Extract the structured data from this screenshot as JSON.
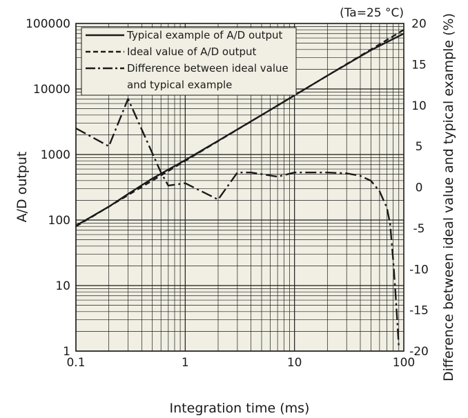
{
  "chart_data": {
    "type": "line",
    "title": "",
    "note": "(Ta=25 °C)",
    "xlabel": "Integration time (ms)",
    "ylabel": "A/D output",
    "y2label": "Difference between ideal value and typical example (%)",
    "x_scale": "log",
    "y_scale": "log",
    "xlim": [
      0.1,
      100
    ],
    "ylim": [
      1,
      100000
    ],
    "y2lim": [
      -20,
      20
    ],
    "grid": true,
    "background": "#f1efe3",
    "legend_position": "top-left",
    "x_tick_labels": [
      "0.1",
      "1",
      "10",
      "100"
    ],
    "y_tick_labels": [
      "1",
      "10",
      "100",
      "1000",
      "10000",
      "100000"
    ],
    "y2_tick_labels": [
      "-20",
      "-15",
      "-10",
      "-5",
      "0",
      "5",
      "10",
      "15",
      "20"
    ],
    "series": [
      {
        "name": "Typical example of A/D output",
        "axis": "left",
        "style": "solid",
        "x": [
          0.1,
          0.2,
          0.3,
          0.5,
          1,
          2,
          5,
          10,
          20,
          50,
          100
        ],
        "values": [
          82,
          160,
          250,
          430,
          820,
          1620,
          4000,
          8000,
          16000,
          39000,
          70000
        ]
      },
      {
        "name": "Ideal value of A/D output",
        "axis": "left",
        "style": "dashed",
        "x": [
          0.1,
          0.2,
          0.3,
          0.5,
          1,
          2,
          5,
          10,
          20,
          50,
          100
        ],
        "values": [
          80,
          160,
          240,
          400,
          800,
          1600,
          4000,
          8000,
          16000,
          40000,
          80000
        ]
      },
      {
        "name": "Difference between ideal value and typical example",
        "axis": "right",
        "style": "dashdot",
        "x": [
          0.1,
          0.2,
          0.3,
          0.6,
          0.7,
          1,
          2,
          3,
          4,
          7,
          10,
          20,
          30,
          40,
          50,
          60,
          70,
          75,
          80,
          85,
          90
        ],
        "values": [
          7.2,
          5.0,
          10.8,
          1.8,
          0.2,
          0.5,
          -1.5,
          1.8,
          1.8,
          1.3,
          1.8,
          1.8,
          1.7,
          1.4,
          0.8,
          -0.5,
          -2.5,
          -4.5,
          -9,
          -14,
          -19.5
        ]
      }
    ]
  }
}
